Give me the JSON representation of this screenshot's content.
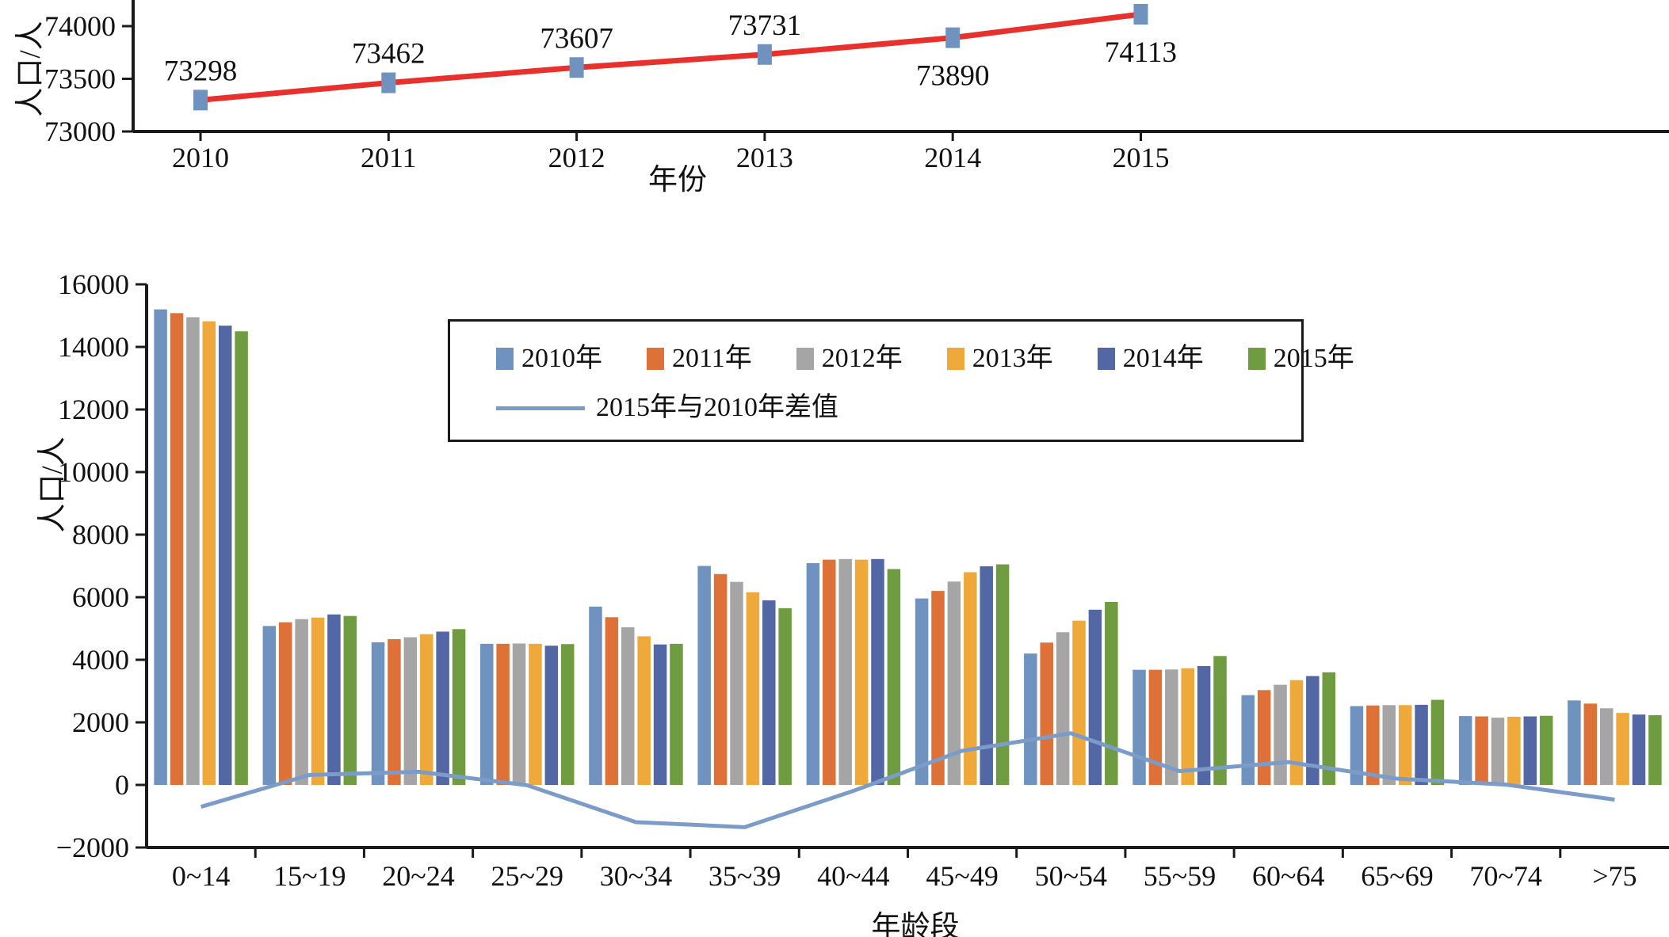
{
  "colors": {
    "axis": "#1a1a1a",
    "text": "#111111",
    "trend_line_red": "#e8312d",
    "marker_blue": "#7092be",
    "diff_line_blue": "#7b9cc9"
  },
  "labels": {
    "top_y_axis": "人口/人",
    "top_x_axis": "年份",
    "bottom_y_axis": "人口/人",
    "bottom_x_axis": "年龄段"
  },
  "chart_data": [
    {
      "type": "line",
      "title": "",
      "xlabel": "年份",
      "ylabel": "人口/人",
      "x": [
        "2010",
        "2011",
        "2012",
        "2013",
        "2014",
        "2015"
      ],
      "values": [
        73298,
        73462,
        73607,
        73731,
        73890,
        74113
      ],
      "data_labels": [
        "73298",
        "73462",
        "73607",
        "73731",
        "73890",
        "74113"
      ],
      "label_side": [
        "above",
        "above",
        "above",
        "above",
        "below",
        "below"
      ],
      "yticks": [
        73000,
        73500,
        74000
      ],
      "ylim": [
        73000,
        74250
      ],
      "grid": false,
      "line_color": "#e8312d",
      "marker": "square",
      "marker_color": "#7092be"
    },
    {
      "type": "bar",
      "title": "",
      "xlabel": "年龄段",
      "ylabel": "人口/人",
      "categories": [
        "0~14",
        "15~19",
        "20~24",
        "25~29",
        "30~34",
        "35~39",
        "40~44",
        "45~49",
        "50~54",
        "55~59",
        "60~64",
        "65~69",
        "70~74",
        ">75"
      ],
      "series": [
        {
          "name": "2010年",
          "color": "#7092be",
          "values": [
            15200,
            5080,
            4560,
            4510,
            5700,
            7000,
            7090,
            5960,
            4200,
            3680,
            2870,
            2520,
            2200,
            2700
          ]
        },
        {
          "name": "2011年",
          "color": "#dd7138",
          "values": [
            15080,
            5200,
            4660,
            4510,
            5360,
            6740,
            7200,
            6200,
            4550,
            3680,
            3030,
            2540,
            2190,
            2600
          ]
        },
        {
          "name": "2012年",
          "color": "#a5a5a5",
          "values": [
            14950,
            5300,
            4720,
            4520,
            5040,
            6490,
            7220,
            6500,
            4880,
            3690,
            3200,
            2550,
            2150,
            2450
          ]
        },
        {
          "name": "2013年",
          "color": "#efa93b",
          "values": [
            14820,
            5350,
            4820,
            4510,
            4750,
            6160,
            7200,
            6800,
            5250,
            3730,
            3350,
            2550,
            2180,
            2300
          ]
        },
        {
          "name": "2014年",
          "color": "#5267a4",
          "values": [
            14680,
            5450,
            4900,
            4450,
            4490,
            5900,
            7220,
            6990,
            5600,
            3800,
            3480,
            2560,
            2190,
            2250
          ]
        },
        {
          "name": "2015年",
          "color": "#6f9c40",
          "values": [
            14500,
            5400,
            4980,
            4500,
            4510,
            5650,
            6900,
            7050,
            5850,
            4120,
            3600,
            2720,
            2210,
            2230
          ]
        }
      ],
      "line_series": {
        "name": "2015年与2010年差值",
        "color": "#7b9cc9",
        "values": [
          -700,
          320,
          420,
          -10,
          -1190,
          -1350,
          -190,
          1090,
          1650,
          440,
          730,
          200,
          10,
          -470
        ]
      },
      "yticks": [
        -2000,
        0,
        2000,
        4000,
        6000,
        8000,
        10000,
        12000,
        14000,
        16000
      ],
      "ylim": [
        -2000,
        16000
      ],
      "grid": false,
      "legend_position": "inside-top-center"
    }
  ]
}
